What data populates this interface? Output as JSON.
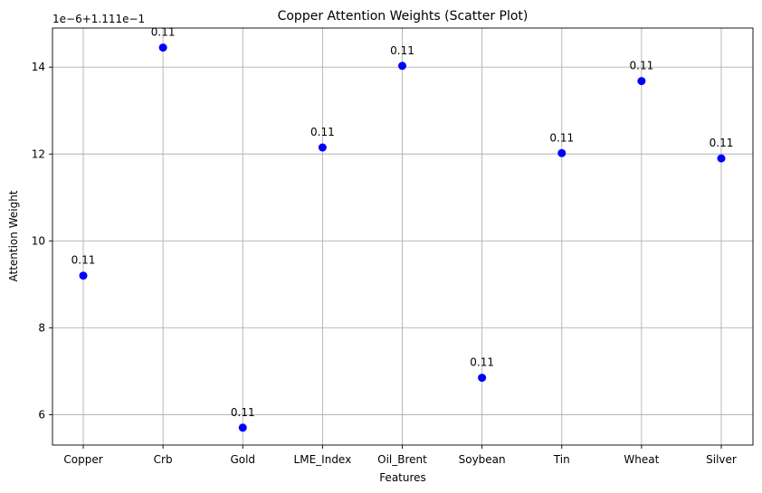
{
  "chart_data": {
    "type": "scatter",
    "title": "Copper Attention Weights (Scatter Plot)",
    "xlabel": "Features",
    "ylabel": "Attention Weight",
    "offset_label": "1e−6+1.111e−1",
    "categories": [
      "Copper",
      "Crb",
      "Gold",
      "LME_Index",
      "Oil_Brent",
      "Soybean",
      "Tin",
      "Wheat",
      "Silver"
    ],
    "values": [
      9.2,
      14.45,
      5.7,
      12.15,
      14.03,
      6.85,
      12.02,
      13.68,
      11.9
    ],
    "data_labels": [
      "0.11",
      "0.11",
      "0.11",
      "0.11",
      "0.11",
      "0.11",
      "0.11",
      "0.11",
      "0.11"
    ],
    "yticks": [
      6,
      8,
      10,
      12,
      14
    ],
    "ylim": [
      5.3,
      14.9
    ],
    "grid": true,
    "marker_color": "#0000ff",
    "grid_color": "#b0b0b0"
  }
}
